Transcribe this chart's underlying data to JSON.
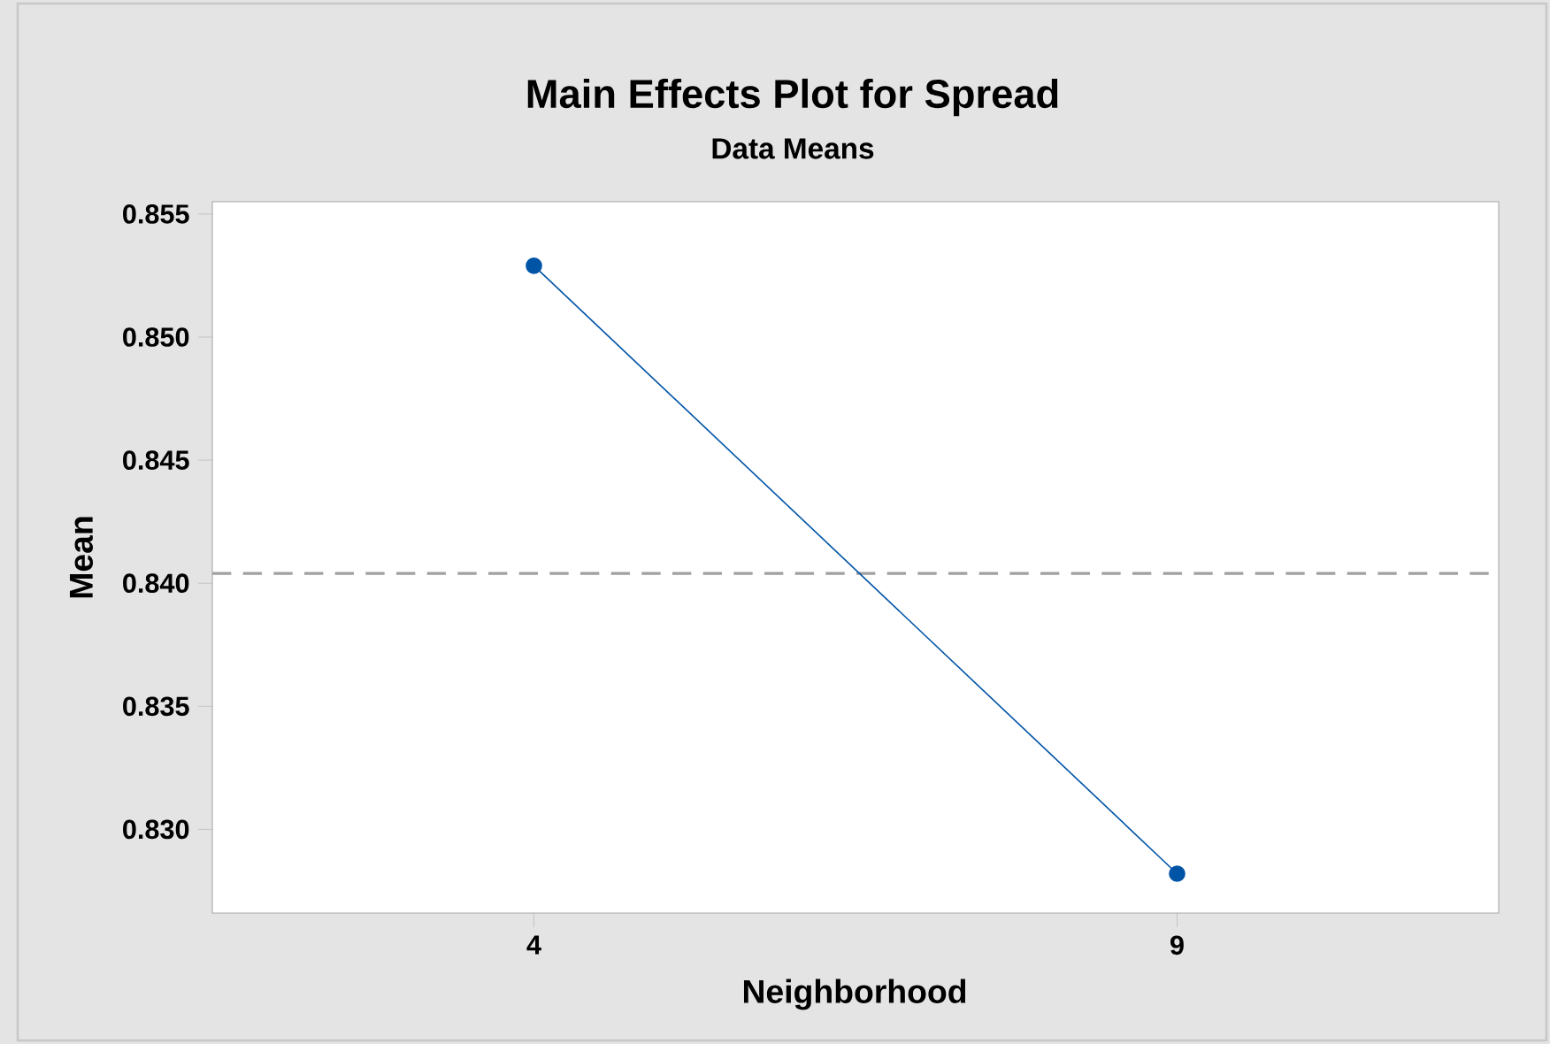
{
  "chart_data": {
    "type": "line",
    "title": "Main Effects Plot for Spread",
    "subtitle": "Data Means",
    "xlabel": "Neighborhood",
    "ylabel": "Mean",
    "categories": [
      "4",
      "9"
    ],
    "series": [
      {
        "color": "#0054a6",
        "values": [
          0.8529,
          0.8282
        ]
      }
    ],
    "marker": "circle",
    "ylim": [
      0.8266,
      0.8555
    ],
    "yticks": [
      {
        "value": 0.83,
        "label": "0.830"
      },
      0.835,
      {
        "value": 0.84,
        "label": "0.840"
      },
      0.845,
      {
        "value": 0.85,
        "label": "0.850"
      },
      0.855
    ],
    "ref_lines": [
      {
        "axis": "y",
        "value": 0.8404,
        "color": "#a0a0a0",
        "line_style": "dashed"
      }
    ]
  }
}
